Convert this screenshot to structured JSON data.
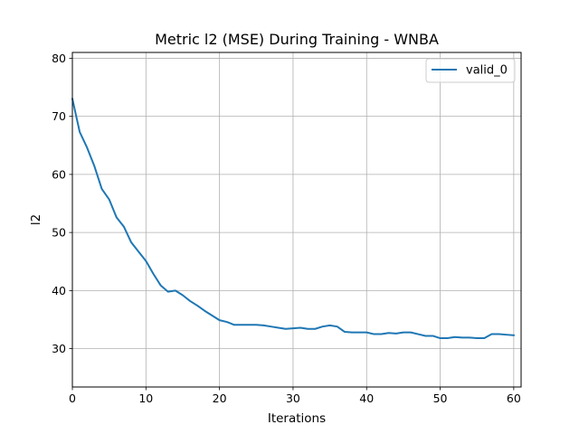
{
  "chart_data": {
    "type": "line",
    "title": "Metric l2 (MSE) During Training - WNBA",
    "xlabel": "Iterations",
    "ylabel": "l2",
    "xlim": [
      0,
      61
    ],
    "ylim": [
      23.4,
      81
    ],
    "xticks": [
      0,
      10,
      20,
      30,
      40,
      50,
      60
    ],
    "yticks": [
      30,
      40,
      50,
      60,
      70,
      80
    ],
    "grid": true,
    "legend_position": "top-right",
    "series": [
      {
        "name": "valid_0",
        "color": "#1f77b4",
        "x": [
          0,
          1,
          2,
          3,
          4,
          5,
          6,
          7,
          8,
          9,
          10,
          11,
          12,
          13,
          14,
          15,
          16,
          17,
          18,
          19,
          20,
          21,
          22,
          23,
          24,
          25,
          26,
          27,
          28,
          29,
          30,
          31,
          32,
          33,
          34,
          35,
          36,
          37,
          38,
          39,
          40,
          41,
          42,
          43,
          44,
          45,
          46,
          47,
          48,
          49,
          50,
          51,
          52,
          53,
          54,
          55,
          56,
          57,
          58,
          59,
          60
        ],
        "y": [
          73.0,
          67.3,
          64.6,
          61.4,
          57.5,
          55.7,
          52.6,
          51.0,
          48.3,
          46.7,
          45.1,
          42.9,
          40.9,
          39.8,
          40.0,
          39.2,
          38.2,
          37.4,
          36.5,
          35.7,
          34.9,
          34.6,
          34.1,
          34.1,
          34.1,
          34.1,
          34.0,
          33.8,
          33.6,
          33.4,
          33.5,
          33.6,
          33.4,
          33.4,
          33.8,
          34.0,
          33.8,
          32.9,
          32.8,
          32.8,
          32.8,
          32.5,
          32.5,
          32.7,
          32.6,
          32.8,
          32.8,
          32.5,
          32.2,
          32.2,
          31.8,
          31.8,
          32.0,
          31.9,
          31.9,
          31.8,
          31.8,
          32.5,
          32.5,
          32.4,
          32.3
        ]
      }
    ]
  }
}
